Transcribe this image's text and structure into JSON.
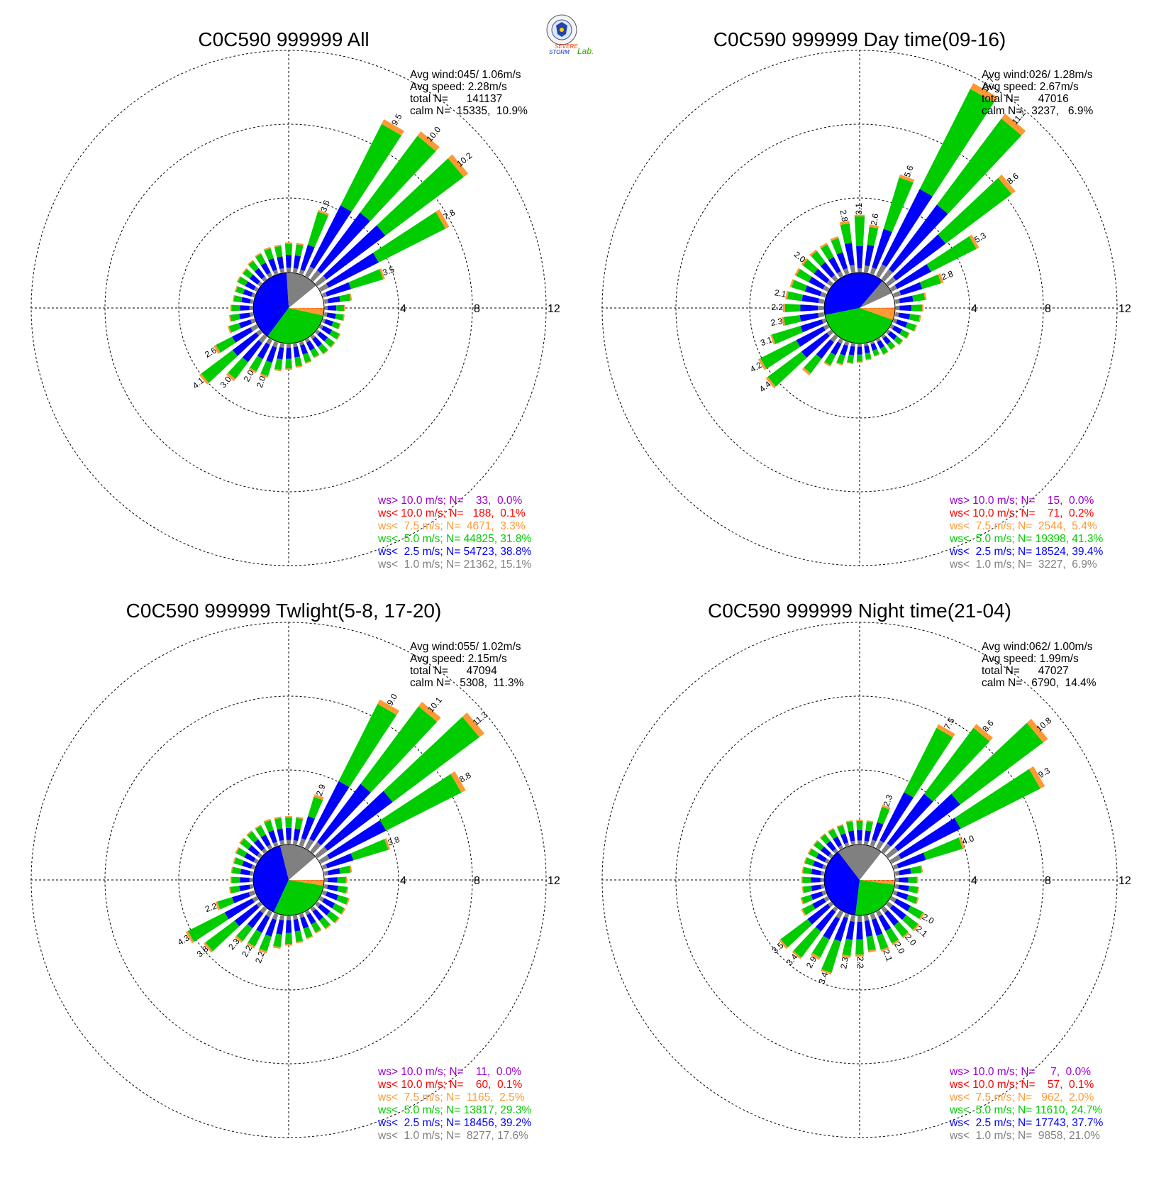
{
  "colors": {
    "gt10": "#9900cc",
    "lt10": "#ff0000",
    "lt7_5": "#ff9933",
    "lt5": "#00cc00",
    "lt2_5": "#0000ff",
    "lt1": "#808080",
    "calm": "#ffffff"
  },
  "logo": {
    "name": "severe-storm-lab-logo",
    "text_a": "SEVERE",
    "text_b": "STORM",
    "text_c": "Lab."
  },
  "ring_labels": [
    "4",
    "8",
    "12"
  ],
  "panels": [
    {
      "title": "C0C590 999999 All",
      "info": [
        "Avg wind:045/ 1.06m/s",
        "Avg speed: 2.28m/s",
        "total N=      141137",
        "calm N=  15335,  10.9%"
      ],
      "legend": [
        {
          "text": "ws> 10.0 m/s; N=    33,  0.0%",
          "color_key": "gt10"
        },
        {
          "text": "ws< 10.0 m/s; N=   188,  0.1%",
          "color_key": "lt10"
        },
        {
          "text": "ws<  7.5 m/s; N=  4671,  3.3%",
          "color_key": "lt7_5"
        },
        {
          "text": "ws<  5.0 m/s; N= 44825, 31.8%",
          "color_key": "lt5"
        },
        {
          "text": "ws<  2.5 m/s; N= 54723, 38.8%",
          "color_key": "lt2_5"
        },
        {
          "text": "ws<  1.0 m/s; N= 21362, 15.1%",
          "color_key": "lt1"
        }
      ]
    },
    {
      "title": "C0C590 999999 Day time(09-16)",
      "info": [
        "Avg wind:026/ 1.28m/s",
        "Avg speed: 2.67m/s",
        "total N=      47016",
        "calm N=   3237,   6.9%"
      ],
      "legend": [
        {
          "text": "ws> 10.0 m/s; N=    15,  0.0%",
          "color_key": "gt10"
        },
        {
          "text": "ws< 10.0 m/s; N=    71,  0.2%",
          "color_key": "lt10"
        },
        {
          "text": "ws<  7.5 m/s; N=  2544,  5.4%",
          "color_key": "lt7_5"
        },
        {
          "text": "ws<  5.0 m/s; N= 19398, 41.3%",
          "color_key": "lt5"
        },
        {
          "text": "ws<  2.5 m/s; N= 18524, 39.4%",
          "color_key": "lt2_5"
        },
        {
          "text": "ws<  1.0 m/s; N=  3227,  6.9%",
          "color_key": "lt1"
        }
      ]
    },
    {
      "title": "C0C590 999999 Twlight(5-8, 17-20)",
      "info": [
        "Avg wind:055/ 1.02m/s",
        "Avg speed: 2.15m/s",
        "total N=      47094",
        "calm N=   5308,  11.3%"
      ],
      "legend": [
        {
          "text": "ws> 10.0 m/s; N=    11,  0.0%",
          "color_key": "gt10"
        },
        {
          "text": "ws< 10.0 m/s; N=    60,  0.1%",
          "color_key": "lt10"
        },
        {
          "text": "ws<  7.5 m/s; N=  1165,  2.5%",
          "color_key": "lt7_5"
        },
        {
          "text": "ws<  5.0 m/s; N= 13817, 29.3%",
          "color_key": "lt5"
        },
        {
          "text": "ws<  2.5 m/s; N= 18456, 39.2%",
          "color_key": "lt2_5"
        },
        {
          "text": "ws<  1.0 m/s; N=  8277, 17.6%",
          "color_key": "lt1"
        }
      ]
    },
    {
      "title": "C0C590 999999 Night time(21-04)",
      "info": [
        "Avg wind:062/ 1.00m/s",
        "Avg speed: 1.99m/s",
        "total N=      47027",
        "calm N=   6790,  14.4%"
      ],
      "legend": [
        {
          "text": "ws> 10.0 m/s; N=     7,  0.0%",
          "color_key": "gt10"
        },
        {
          "text": "ws< 10.0 m/s; N=    57,  0.1%",
          "color_key": "lt10"
        },
        {
          "text": "ws<  7.5 m/s; N=   962,  2.0%",
          "color_key": "lt7_5"
        },
        {
          "text": "ws<  5.0 m/s; N= 11610, 24.7%",
          "color_key": "lt5"
        },
        {
          "text": "ws<  2.5 m/s; N= 17743, 37.7%",
          "color_key": "lt2_5"
        },
        {
          "text": "ws<  1.0 m/s; N=  9858, 21.0%",
          "color_key": "lt1"
        }
      ]
    }
  ],
  "chart_data": [
    {
      "type": "wind-rose",
      "title": "C0C590 999999 All",
      "rlim": [
        0,
        12
      ],
      "ring_ticks": [
        4,
        8,
        12
      ],
      "grid": true,
      "sector_width_deg": 10,
      "speed_classes": [
        "ws< 1.0 m/s",
        "ws< 2.5 m/s",
        "ws< 5.0 m/s",
        "ws< 7.5 m/s",
        "ws< 10.0 m/s",
        "ws> 10.0 m/s"
      ],
      "calm_pie_percent": [
        10.9,
        15.1,
        38.8,
        31.8,
        3.3,
        0.1,
        0.0
      ],
      "directions_deg": [
        0,
        10,
        20,
        30,
        40,
        50,
        60,
        70,
        80,
        90,
        100,
        110,
        120,
        130,
        140,
        150,
        160,
        170,
        180,
        190,
        200,
        210,
        220,
        230,
        240,
        250,
        260,
        270,
        280,
        290,
        300,
        310,
        320,
        330,
        340,
        350
      ],
      "sector_totals": [
        1.6,
        1.6,
        3.6,
        9.5,
        10.0,
        10.2,
        7.8,
        3.5,
        1.5,
        1.1,
        1.1,
        1.0,
        1.2,
        1.2,
        1.2,
        1.1,
        1.2,
        1.3,
        1.4,
        1.5,
        2.0,
        2.0,
        3.0,
        4.1,
        2.6,
        1.5,
        1.3,
        1.2,
        1.1,
        1.1,
        1.2,
        1.2,
        1.3,
        1.4,
        1.5,
        1.5
      ],
      "labeled_values": {
        "20": "3.6",
        "30": "9.5",
        "40": "10.0",
        "50": "10.2",
        "60": "7.8",
        "70": "3.5",
        "200": "2.0",
        "210": "2.0",
        "220": "3.0",
        "230": "4.1",
        "240": "2.6"
      }
    },
    {
      "type": "wind-rose",
      "title": "C0C590 999999 Day time(09-16)",
      "rlim": [
        0,
        12
      ],
      "ring_ticks": [
        4,
        8,
        12
      ],
      "grid": true,
      "sector_width_deg": 10,
      "speed_classes": [
        "ws< 1.0 m/s",
        "ws< 2.5 m/s",
        "ws< 5.0 m/s",
        "ws< 7.5 m/s",
        "ws< 10.0 m/s",
        "ws> 10.0 m/s"
      ],
      "calm_pie_percent": [
        6.9,
        6.9,
        39.4,
        41.3,
        5.4,
        0.2,
        0.0
      ],
      "directions_deg": [
        0,
        10,
        20,
        30,
        40,
        50,
        60,
        70,
        80,
        90,
        100,
        110,
        120,
        130,
        140,
        150,
        160,
        170,
        180,
        190,
        200,
        210,
        220,
        230,
        240,
        250,
        260,
        270,
        280,
        290,
        300,
        310,
        320,
        330,
        340,
        350
      ],
      "sector_totals": [
        3.1,
        2.6,
        5.6,
        11.7,
        11.2,
        8.6,
        5.3,
        2.8,
        1.7,
        1.5,
        1.4,
        1.3,
        1.1,
        1.0,
        0.9,
        0.9,
        0.8,
        0.9,
        1.0,
        1.1,
        1.3,
        1.6,
        2.6,
        4.4,
        4.2,
        3.1,
        2.3,
        2.2,
        2.1,
        2.0,
        2.0,
        2.0,
        2.0,
        2.0,
        2.1,
        2.8
      ],
      "labeled_values": {
        "0": "3.1",
        "10": "2.6",
        "20": "5.6",
        "30": "11.7",
        "40": "11.2",
        "50": "8.6",
        "60": "5.3",
        "70": "2.8",
        "230": "4.4",
        "240": "4.2",
        "250": "3.1",
        "260": "2.3",
        "270": "2.2",
        "280": "2.1",
        "310": "2.0",
        "350": "2.8"
      }
    },
    {
      "type": "wind-rose",
      "title": "C0C590 999999 Twlight(5-8, 17-20)",
      "rlim": [
        0,
        12
      ],
      "ring_ticks": [
        4,
        8,
        12
      ],
      "grid": true,
      "sector_width_deg": 10,
      "speed_classes": [
        "ws< 1.0 m/s",
        "ws< 2.5 m/s",
        "ws< 5.0 m/s",
        "ws< 7.5 m/s",
        "ws< 10.0 m/s",
        "ws> 10.0 m/s"
      ],
      "calm_pie_percent": [
        11.3,
        17.6,
        39.2,
        29.3,
        2.5,
        0.1,
        0.0
      ],
      "directions_deg": [
        0,
        10,
        20,
        30,
        40,
        50,
        60,
        70,
        80,
        90,
        100,
        110,
        120,
        130,
        140,
        150,
        160,
        170,
        180,
        190,
        200,
        210,
        220,
        230,
        240,
        250,
        260,
        270,
        280,
        290,
        300,
        310,
        320,
        330,
        340,
        350
      ],
      "sector_totals": [
        1.5,
        1.5,
        2.9,
        9.0,
        10.1,
        11.3,
        8.8,
        3.8,
        1.5,
        1.2,
        1.3,
        1.5,
        1.5,
        1.5,
        1.4,
        1.3,
        1.4,
        1.5,
        1.6,
        1.8,
        2.2,
        2.2,
        2.3,
        3.8,
        4.3,
        2.2,
        1.3,
        1.2,
        1.2,
        1.2,
        1.3,
        1.4,
        1.4,
        1.4,
        1.5,
        1.5
      ],
      "labeled_values": {
        "20": "2.9",
        "30": "9.0",
        "40": "10.1",
        "50": "11.3",
        "60": "8.8",
        "70": "3.8",
        "200": "2.2",
        "210": "2.2",
        "220": "2.3",
        "230": "3.8",
        "240": "4.3",
        "250": "2.2"
      }
    },
    {
      "type": "wind-rose",
      "title": "C0C590 999999 Night time(21-04)",
      "rlim": [
        0,
        12
      ],
      "ring_ticks": [
        4,
        8,
        12
      ],
      "grid": true,
      "sector_width_deg": 10,
      "speed_classes": [
        "ws< 1.0 m/s",
        "ws< 2.5 m/s",
        "ws< 5.0 m/s",
        "ws< 7.5 m/s",
        "ws< 10.0 m/s",
        "ws> 10.0 m/s"
      ],
      "calm_pie_percent": [
        14.4,
        21.0,
        37.7,
        24.7,
        2.0,
        0.1,
        0.0
      ],
      "directions_deg": [
        0,
        10,
        20,
        30,
        40,
        50,
        60,
        70,
        80,
        90,
        100,
        110,
        120,
        130,
        140,
        150,
        160,
        170,
        180,
        190,
        200,
        210,
        220,
        230,
        240,
        250,
        260,
        270,
        280,
        290,
        300,
        310,
        320,
        330,
        340,
        350
      ],
      "sector_totals": [
        1.3,
        1.3,
        2.3,
        7.5,
        8.6,
        10.8,
        9.3,
        4.0,
        1.5,
        1.2,
        1.3,
        1.4,
        2.0,
        2.1,
        2.0,
        2.0,
        2.1,
        2.0,
        2.2,
        2.3,
        3.4,
        2.9,
        3.4,
        3.5,
        1.6,
        1.4,
        1.2,
        1.2,
        1.2,
        1.2,
        1.2,
        1.2,
        1.2,
        1.2,
        1.2,
        1.3
      ],
      "labeled_values": {
        "20": "2.3",
        "30": "7.5",
        "40": "8.6",
        "50": "10.8",
        "60": "9.3",
        "70": "4.0",
        "120": "2.0",
        "130": "2.1",
        "140": "2.0",
        "150": "2.0",
        "160": "2.1",
        "180": "2.2",
        "190": "2.3",
        "200": "3.4",
        "210": "2.9",
        "220": "3.4",
        "230": "3.5"
      }
    }
  ]
}
